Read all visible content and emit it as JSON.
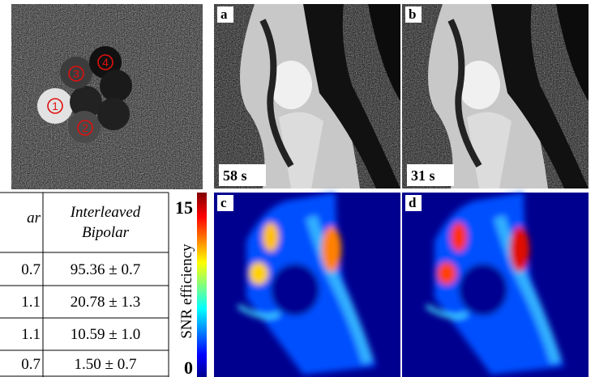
{
  "table": {
    "header": [
      "ar",
      "Interleaved Bipolar"
    ],
    "rows": [
      [
        "0.7",
        "95.36 ± 0.7"
      ],
      [
        "1.1",
        "20.78 ± 1.3"
      ],
      [
        "1.1",
        "10.59 ± 1.0"
      ],
      [
        "0.7",
        "1.50 ± 0.7"
      ]
    ]
  },
  "phantom": {
    "labels": [
      "1",
      "2",
      "3",
      "4"
    ]
  },
  "colorbar": {
    "label": "SNR efficiency",
    "max": "15",
    "min": "0"
  },
  "panels": [
    {
      "letter": "a",
      "time": "58 s"
    },
    {
      "letter": "b",
      "time": "31 s"
    },
    {
      "letter": "c"
    },
    {
      "letter": "d"
    }
  ]
}
